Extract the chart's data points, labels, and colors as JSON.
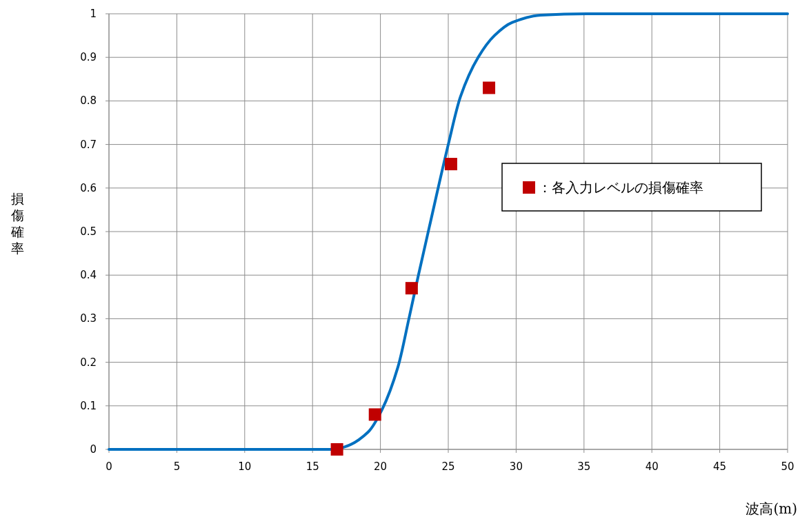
{
  "chart_data": {
    "type": "scatter",
    "xlabel": "波高(m)",
    "ylabel": "損傷確率",
    "xlim": [
      0,
      50
    ],
    "ylim": [
      0,
      1
    ],
    "xticks": [
      0,
      5,
      10,
      15,
      20,
      25,
      30,
      35,
      40,
      45,
      50
    ],
    "yticks": [
      0,
      {
        "value": 0.1,
        "label": "0.1"
      },
      {
        "value": 0.2,
        "label": "0.2"
      },
      {
        "value": 0.3,
        "label": "0.3"
      },
      {
        "value": 0.4,
        "label": "0.4"
      },
      {
        "value": 0.5,
        "label": "0.5"
      },
      {
        "value": 0.6,
        "label": "0.6"
      },
      {
        "value": 0.7,
        "label": "0.7"
      },
      {
        "value": 0.8,
        "label": "0.8"
      },
      {
        "value": 0.9,
        "label": "0.9"
      },
      1
    ],
    "grid": true,
    "legend": "right",
    "series": [
      {
        "type": "line",
        "color": "#0070c0",
        "marker": "none",
        "line_style": "solid",
        "x": [
          0,
          16.5,
          17.4,
          19.1,
          20.1,
          21.3,
          22.1,
          22.8,
          23.6,
          25.0,
          25.9,
          27.2,
          28.4,
          29.7,
          31.8,
          35.2,
          50
        ],
        "values": [
          0,
          0,
          0.006,
          0.04,
          0.09,
          0.19,
          0.3,
          0.4,
          0.51,
          0.7,
          0.81,
          0.9,
          0.95,
          0.98,
          0.997,
          1,
          1
        ]
      },
      {
        "name": "：各入力レベルの損傷確率",
        "color": "#c00000",
        "marker": "square",
        "x": [
          16.8,
          19.6,
          22.3,
          25.2,
          28.0
        ],
        "values": [
          0,
          0.08,
          0.37,
          0.655,
          0.83
        ]
      }
    ]
  }
}
